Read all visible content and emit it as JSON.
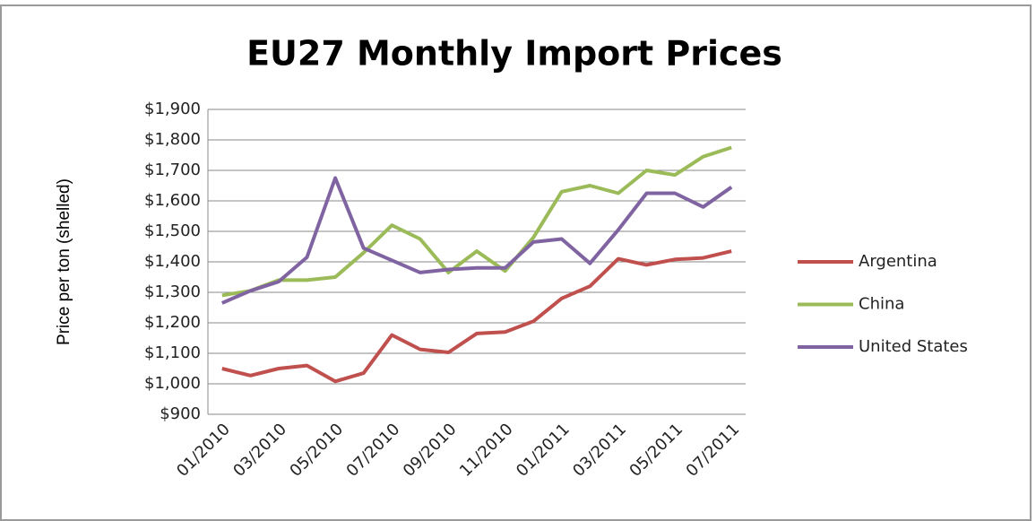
{
  "chart_data": {
    "type": "line",
    "title": "EU27 Monthly Import Prices",
    "y_label": "Price per ton (shelled)",
    "categories": [
      "01/2010",
      null,
      "03/2010",
      null,
      "05/2010",
      null,
      "07/2010",
      null,
      "09/2010",
      null,
      "11/2010",
      null,
      "01/2011",
      null,
      "03/2011",
      null,
      "05/2011",
      null,
      "07/2011"
    ],
    "series": [
      {
        "name": "Argentina",
        "color": "#c0504d",
        "values": [
          1050,
          1027,
          1050,
          1060,
          1008,
          1035,
          1160,
          1113,
          1103,
          1165,
          1170,
          1205,
          1280,
          1320,
          1410,
          1390,
          1408,
          1413,
          1435
        ]
      },
      {
        "name": "China",
        "color": "#9bbb59",
        "values": [
          1290,
          1305,
          1340,
          1340,
          1350,
          1430,
          1520,
          1475,
          1365,
          1435,
          1370,
          1480,
          1630,
          1650,
          1625,
          1700,
          1685,
          1745,
          1775
        ]
      },
      {
        "name": "United States",
        "color": "#8064a2",
        "values": [
          1265,
          1305,
          1335,
          1415,
          1675,
          1445,
          1405,
          1365,
          1375,
          1380,
          1380,
          1465,
          1475,
          1395,
          1505,
          1625,
          1625,
          1580,
          1645
        ]
      }
    ],
    "ylim": [
      900,
      1900
    ],
    "yticks": [
      {
        "value": 900,
        "label": "$900"
      },
      {
        "value": 1000,
        "label": "$1,000"
      },
      {
        "value": 1100,
        "label": "$1,100"
      },
      {
        "value": 1200,
        "label": "$1,200"
      },
      {
        "value": 1300,
        "label": "$1,300"
      },
      {
        "value": 1400,
        "label": "$1,400"
      },
      {
        "value": 1500,
        "label": "$1,500"
      },
      {
        "value": 1600,
        "label": "$1,600"
      },
      {
        "value": 1700,
        "label": "$1,700"
      },
      {
        "value": 1800,
        "label": "$1,800"
      },
      {
        "value": 1900,
        "label": "$1,900"
      }
    ],
    "grid": true,
    "legend": "right"
  }
}
